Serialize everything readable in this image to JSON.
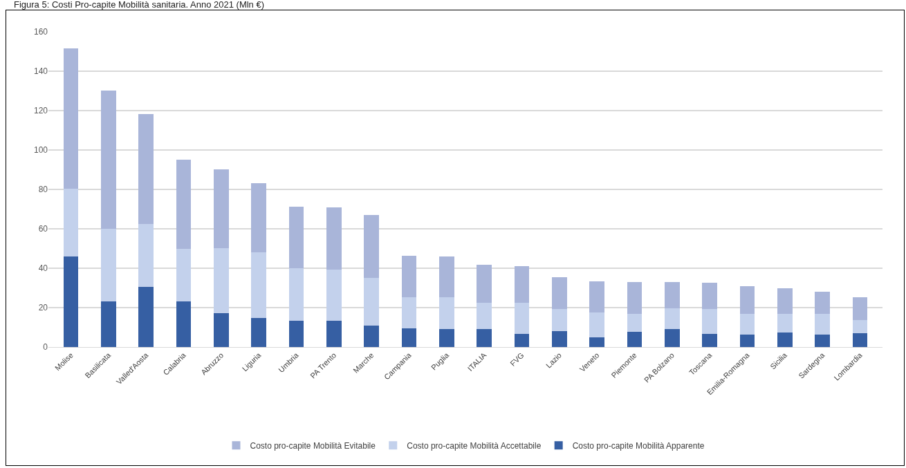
{
  "chart_data": {
    "type": "bar",
    "title": "Figura 5: Costi Pro-capite Mobilità sanitaria. Anno 2021 (Mln €)",
    "stacked": true,
    "categories": [
      "Molise",
      "Basilicata",
      "Valled'Aosta",
      "Calabria",
      "Abruzzo",
      "Liguria",
      "Umbria",
      "PA Trento",
      "Marche",
      "Campania",
      "Puglia",
      "ITALIA",
      "FVG",
      "Lazio",
      "Veneto",
      "Piemonte",
      "PA Bolzano",
      "Toscana",
      "Emilia-Romagna",
      "Sicilia",
      "Sardegna",
      "Lombardia"
    ],
    "series": [
      {
        "name": "Costo pro-capite Mobilità Apparente",
        "color": "#365fa3",
        "values": [
          46,
          23.3,
          30.5,
          23.3,
          17.3,
          14.8,
          13.5,
          13.5,
          10.8,
          9.5,
          9,
          9,
          6.5,
          8,
          5,
          7.6,
          9.3,
          6.6,
          6.3,
          7.3,
          6.3,
          7
        ]
      },
      {
        "name": "Costo pro-capite Mobilità Accettabile",
        "color": "#c3d1ec",
        "values": [
          34.5,
          36.7,
          31.8,
          26.5,
          32.9,
          33.4,
          26.5,
          25.8,
          24.2,
          15.8,
          16.3,
          13.6,
          15.8,
          11.3,
          12.5,
          9.4,
          10.2,
          12.7,
          10.5,
          9.5,
          10.7,
          6.6
        ]
      },
      {
        "name": "Costo pro-capite Mobilità Evitabile",
        "color": "#a9b5d9",
        "values": [
          71,
          70.3,
          56,
          45.2,
          40.1,
          35.1,
          31.2,
          31.7,
          32,
          21,
          20.5,
          19.1,
          18.7,
          16.2,
          15.8,
          16,
          13.5,
          13.4,
          14,
          13.2,
          11.2,
          11.6
        ]
      }
    ],
    "ylim": [
      0,
      160
    ],
    "yticks": [
      0,
      20,
      40,
      60,
      80,
      100,
      120,
      140,
      160
    ],
    "grid": "y",
    "legend": "bottom"
  }
}
